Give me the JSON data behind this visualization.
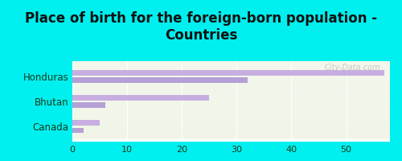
{
  "title": "Place of birth for the foreign-born population -\nCountries",
  "categories": [
    "Honduras",
    "Bhutan",
    "Canada"
  ],
  "values1": [
    57,
    25,
    5
  ],
  "values2": [
    32,
    6,
    2
  ],
  "bar_color1": "#b5a0d5",
  "bar_color2": "#c8aee0",
  "bg_color": "#00efef",
  "plot_bg_top": "#edf5e8",
  "plot_bg_bottom": "#f5faf0",
  "xlim": [
    0,
    58
  ],
  "xticks": [
    0,
    10,
    20,
    30,
    40,
    50
  ],
  "watermark": "City-Data.com",
  "title_fontsize": 12,
  "label_fontsize": 8.5,
  "tick_fontsize": 8
}
